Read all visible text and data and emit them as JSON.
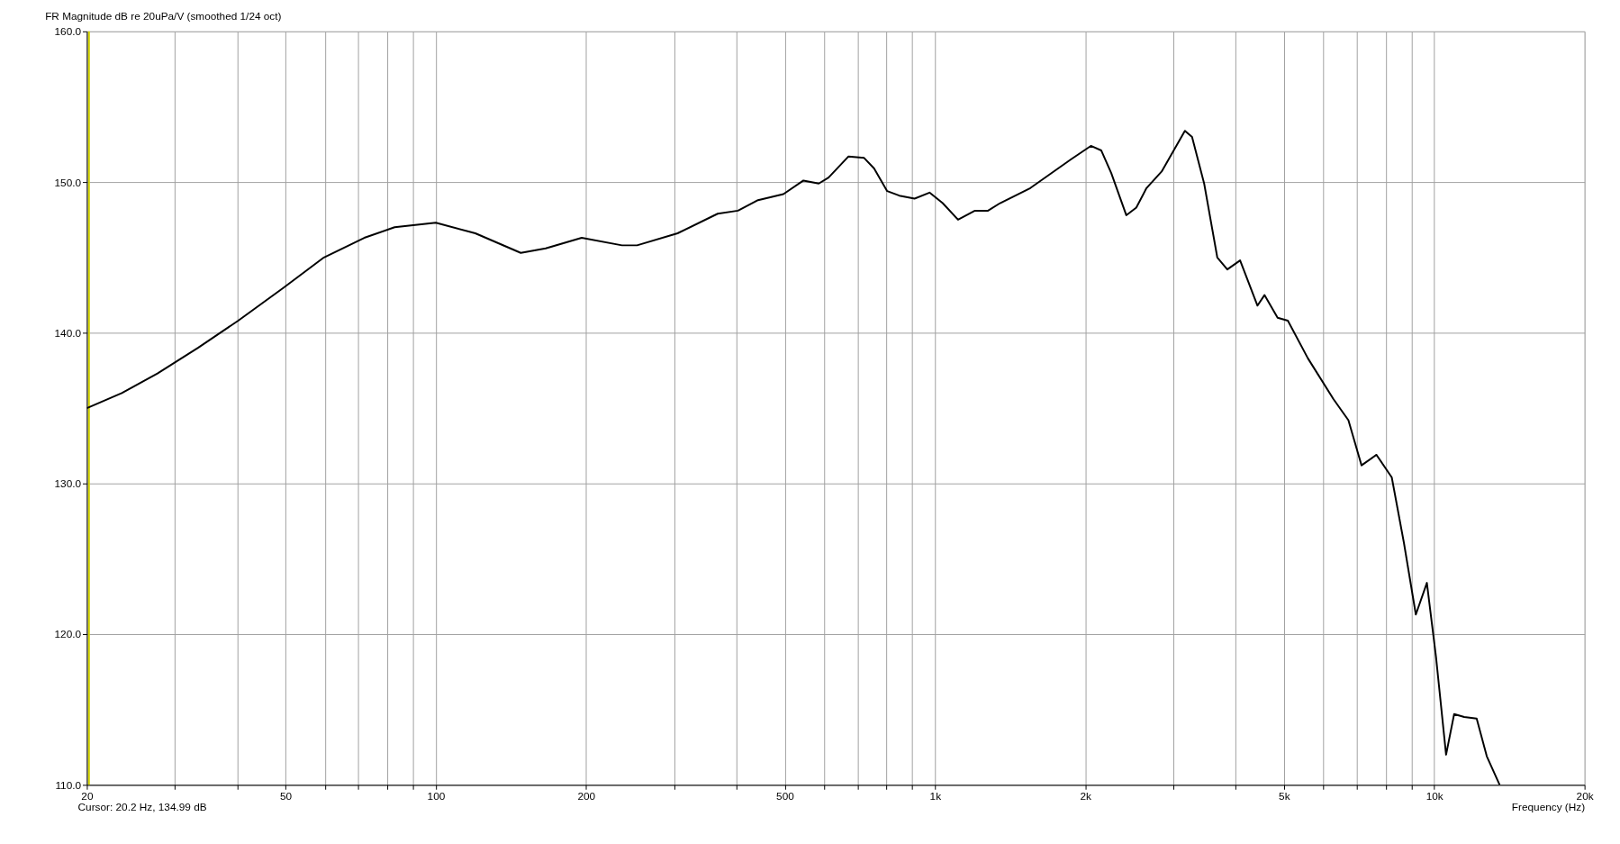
{
  "chart_data": {
    "type": "line",
    "title": "FR Magnitude dB re 20uPa/V (smoothed 1/24 oct)",
    "xlabel": "Frequency (Hz)",
    "log": "x",
    "grid": true,
    "marker": "none",
    "line_style": "solid",
    "xlim": [
      20,
      20000
    ],
    "ylim": [
      110,
      160
    ],
    "xticks": [
      20,
      {
        "value": 30,
        "label": null
      },
      {
        "value": 40,
        "label": null
      },
      50,
      {
        "value": 60,
        "label": null
      },
      {
        "value": 70,
        "label": null
      },
      {
        "value": 80,
        "label": null
      },
      {
        "value": 90,
        "label": null
      },
      100,
      200,
      {
        "value": 300,
        "label": null
      },
      {
        "value": 400,
        "label": null
      },
      500,
      {
        "value": 600,
        "label": null
      },
      {
        "value": 700,
        "label": null
      },
      {
        "value": 800,
        "label": null
      },
      {
        "value": 900,
        "label": null
      },
      {
        "value": 1000,
        "label": "1k"
      },
      {
        "value": 2000,
        "label": "2k"
      },
      {
        "value": 3000,
        "label": null
      },
      {
        "value": 4000,
        "label": null
      },
      {
        "value": 5000,
        "label": "5k"
      },
      {
        "value": 6000,
        "label": null
      },
      {
        "value": 7000,
        "label": null
      },
      {
        "value": 8000,
        "label": null
      },
      {
        "value": 9000,
        "label": null
      },
      {
        "value": 10000,
        "label": "10k"
      },
      {
        "value": 20000,
        "label": "20k"
      }
    ],
    "yticks": [
      {
        "value": 110,
        "label": "110.0"
      },
      {
        "value": 120,
        "label": "120.0"
      },
      {
        "value": 130,
        "label": "130.0"
      },
      {
        "value": 140,
        "label": "140.0"
      },
      {
        "value": 150,
        "label": "150.0"
      },
      {
        "value": 160,
        "label": "160.0"
      }
    ],
    "annotations": [
      "Cursor: 20.2 Hz, 134.99 dB"
    ],
    "ref_lines": [
      {
        "axis": "x",
        "value": 20.2,
        "label": null,
        "color": "#d4d400"
      }
    ],
    "series": [
      {
        "color": "#000000",
        "x": [
          20,
          23.5,
          27.7,
          33.4,
          40.2,
          49.6,
          59.7,
          71.9,
          82.7,
          100,
          120,
          148,
          166,
          196,
          236,
          253,
          305,
          367,
          403,
          442,
          497,
          545,
          585,
          612,
          671,
          721,
          755,
          802,
          848,
          910,
          975,
          1036,
          1112,
          1202,
          1277,
          1350,
          1552,
          1746,
          1871,
          2052,
          2152,
          2254,
          2416,
          2530,
          2652,
          2844,
          3166,
          3272,
          3460,
          3676,
          3850,
          4084,
          4425,
          4570,
          4855,
          5090,
          5584,
          6280,
          6730,
          7150,
          7660,
          8220,
          8690,
          9185,
          9665,
          10080,
          10560,
          10960,
          11480,
          12160,
          12740,
          13520
        ],
        "values": [
          135.0,
          136.0,
          137.3,
          139.0,
          140.8,
          143.0,
          145.0,
          146.3,
          147.0,
          147.3,
          146.6,
          145.3,
          145.6,
          146.3,
          145.8,
          145.8,
          146.6,
          147.9,
          148.1,
          148.8,
          149.2,
          150.1,
          149.9,
          150.3,
          151.7,
          151.6,
          150.9,
          149.4,
          149.1,
          148.9,
          149.3,
          148.6,
          147.5,
          148.1,
          148.1,
          148.6,
          149.6,
          150.8,
          151.5,
          152.4,
          152.1,
          150.6,
          147.8,
          148.3,
          149.6,
          150.7,
          153.4,
          153.0,
          149.9,
          145.0,
          144.2,
          144.8,
          141.8,
          142.5,
          141.0,
          140.8,
          138.3,
          135.6,
          134.2,
          131.2,
          131.9,
          130.4,
          126.1,
          121.3,
          123.4,
          118.5,
          112.0,
          114.7,
          114.5,
          114.4,
          111.9,
          110.0
        ]
      }
    ]
  }
}
